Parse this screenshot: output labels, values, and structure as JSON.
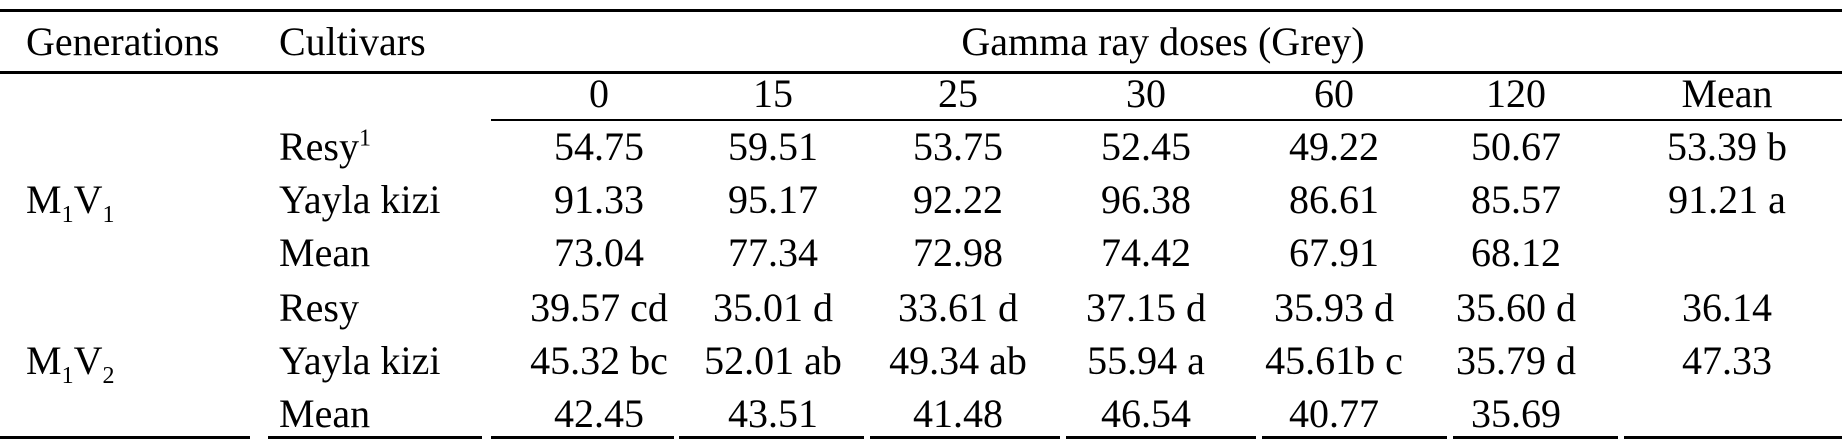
{
  "table": {
    "headers": [
      "Generations",
      "Cultivars",
      "Gamma ray doses (Grey)"
    ],
    "dose_headers": [
      "0",
      "15",
      "25",
      "30",
      "60",
      "120",
      "Mean"
    ],
    "groups": [
      {
        "generation": [
          "M",
          "1",
          "V",
          "1"
        ],
        "rows": [
          {
            "cultivar": "Resy",
            "note": "1",
            "cells": [
              "54.75",
              "59.51",
              "53.75",
              "52.45",
              "49.22",
              "50.67",
              "53.39 b"
            ]
          },
          {
            "cultivar": "Yayla kizi",
            "cells": [
              "91.33",
              "95.17",
              "92.22",
              "96.38",
              "86.61",
              "85.57",
              "91.21 a"
            ]
          },
          {
            "cultivar": "Mean",
            "cells": [
              "73.04",
              "77.34",
              "72.98",
              "74.42",
              "67.91",
              "68.12"
            ]
          }
        ]
      },
      {
        "generation": [
          "M",
          "1",
          "V",
          "2"
        ],
        "rows": [
          {
            "cultivar": "Resy",
            "cells": [
              "39.57 cd",
              "35.01 d",
              "33.61 d",
              "37.15 d",
              "35.93 d",
              "35.60 d",
              "36.14"
            ]
          },
          {
            "cultivar": "Yayla kizi",
            "cells": [
              "45.32 bc",
              "52.01 ab",
              "49.34 ab",
              "55.94 a",
              "45.61b c",
              "35.79 d",
              "47.33"
            ]
          },
          {
            "cultivar": "Mean",
            "cells": [
              "42.45",
              "43.51",
              "41.48",
              "46.54",
              "40.77",
              "35.69"
            ]
          }
        ]
      }
    ]
  }
}
